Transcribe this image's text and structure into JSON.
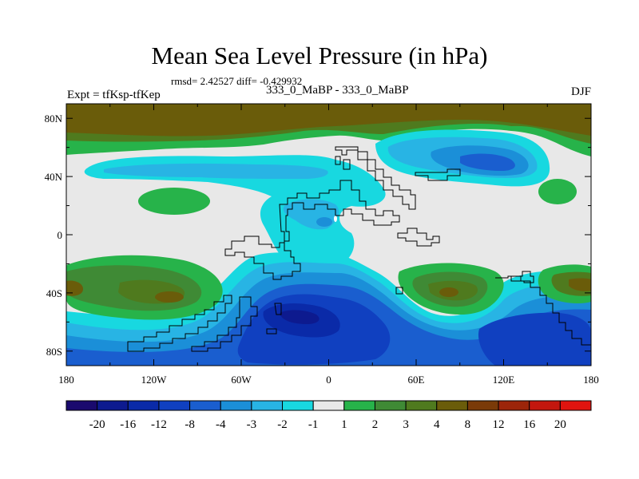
{
  "title": "Mean Sea Level Pressure (in hPa)",
  "stats": "rmsd= 2.42527 diff= -0.429932",
  "left_label": "Expt = tfKsp-tfKep",
  "center_label": "333_0_MaBP - 333_0_MaBP",
  "right_label": "DJF",
  "lat_ticks": [
    "80N",
    "40N",
    "0",
    "40S",
    "80S"
  ],
  "lon_ticks": [
    "180",
    "120W",
    "60W",
    "0",
    "60E",
    "120E",
    "180"
  ],
  "colorbar": {
    "labels": [
      "-20",
      "-16",
      "-12",
      "-8",
      "-4",
      "-3",
      "-2",
      "-1",
      "1",
      "2",
      "3",
      "4",
      "8",
      "12",
      "16",
      "20"
    ],
    "colors": [
      "#1a0a6e",
      "#0d1a8f",
      "#0a2aa8",
      "#1040c0",
      "#1a5ecf",
      "#1b8fd8",
      "#28b4e4",
      "#18d8e0",
      "#e8e8e8",
      "#27b34a",
      "#3f8a35",
      "#4f7a1e",
      "#6a5c0a",
      "#7a3a08",
      "#9c250a",
      "#c3170e",
      "#e0140f"
    ]
  },
  "colors": {
    "land_outline": "#000000",
    "neutral": "#e8e8e8"
  }
}
